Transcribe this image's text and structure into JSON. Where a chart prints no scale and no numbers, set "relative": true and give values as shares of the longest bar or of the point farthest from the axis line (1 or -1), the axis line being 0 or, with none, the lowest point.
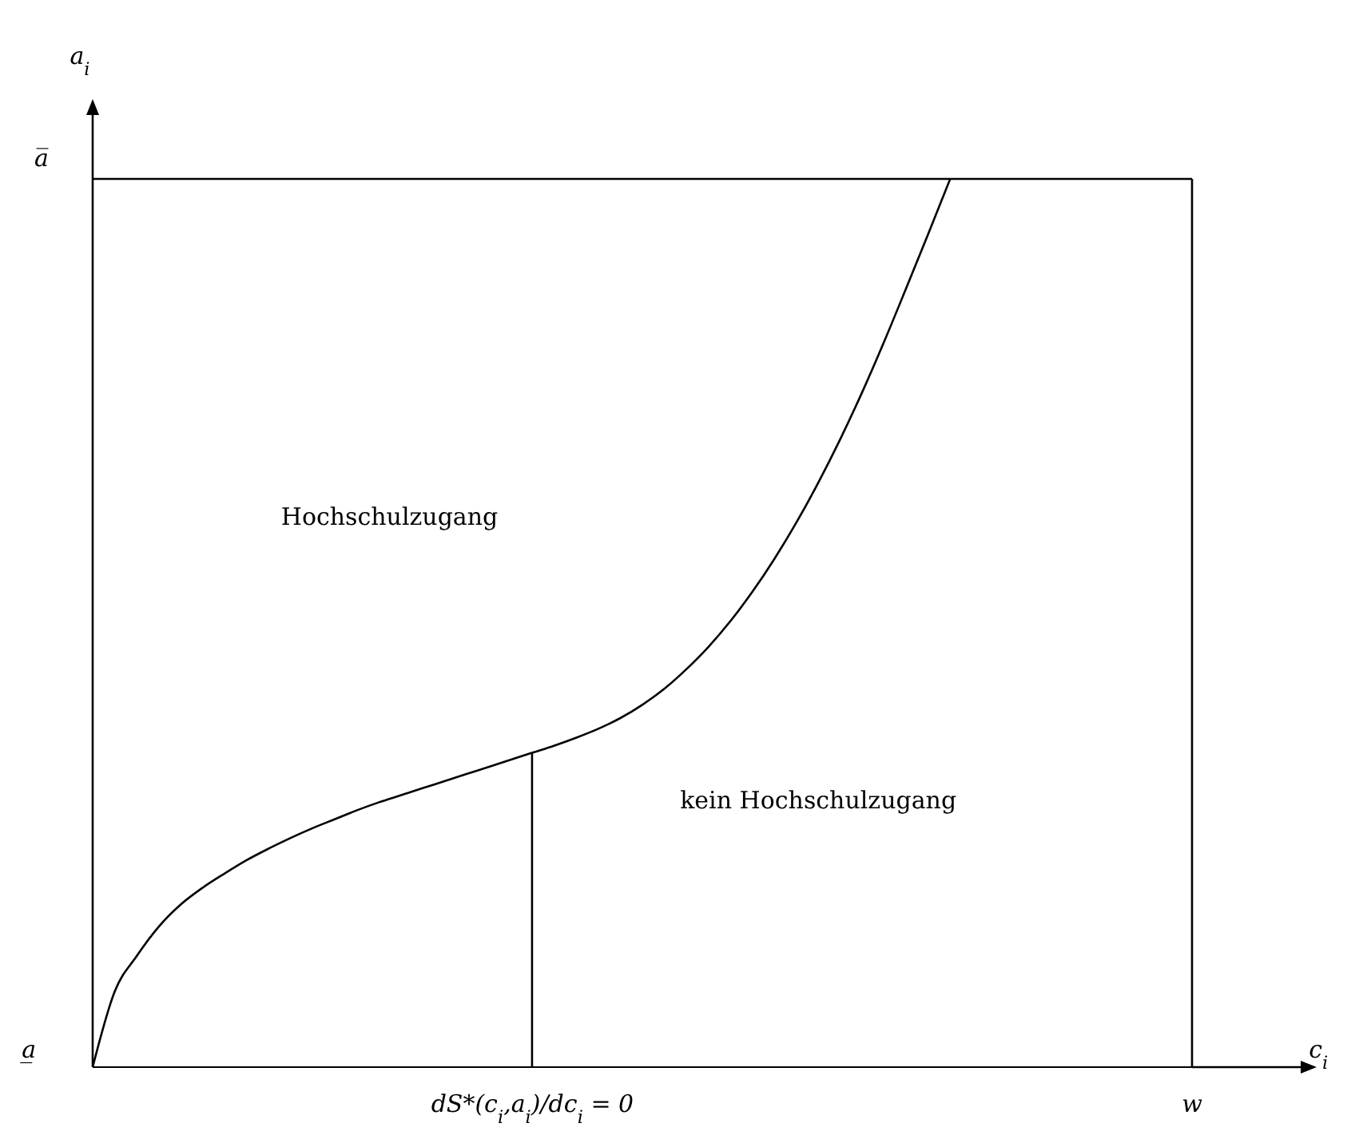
{
  "chart_data": {
    "type": "line",
    "relative": true,
    "ylabel": "a$_{i}$",
    "categories": [
      null,
      null,
      null,
      null,
      null,
      null,
      null,
      null,
      null,
      null,
      null,
      null,
      null,
      null,
      null,
      null,
      null,
      null,
      null,
      null,
      "dS*(c$_{i}$,a$_{i}$)/dc$_{i}$ = 0",
      null,
      null,
      null,
      null,
      null,
      null,
      null,
      null,
      null,
      null,
      null,
      null,
      null,
      null,
      null,
      null,
      null,
      null,
      null,
      null,
      null,
      null,
      null,
      null,
      null,
      null,
      null,
      null,
      null,
      "w"
    ],
    "series": [
      {
        "color": "#000000",
        "values": [
          0,
          0.085,
          0.125,
          0.158,
          0.183,
          0.202,
          0.218,
          0.233,
          0.246,
          0.258,
          0.269,
          0.279,
          0.289,
          0.298,
          0.306,
          0.314,
          0.322,
          0.33,
          0.338,
          0.346,
          0.354,
          0.362,
          0.371,
          0.381,
          0.393,
          0.408,
          0.426,
          0.448,
          0.473,
          0.502,
          0.535,
          0.572,
          0.613,
          0.658,
          0.707,
          0.76,
          0.817,
          0.877,
          0.938,
          1,
          null,
          null,
          null,
          null,
          null,
          null,
          null,
          null,
          null,
          null,
          null
        ]
      },
      {
        "type": "bar",
        "color": "#000000",
        "values": [
          null,
          null,
          null,
          null,
          null,
          null,
          null,
          null,
          null,
          null,
          null,
          null,
          null,
          null,
          null,
          null,
          null,
          null,
          null,
          null,
          0.354,
          null,
          null,
          null,
          null,
          null,
          null,
          null,
          null,
          null,
          null,
          null,
          null,
          null,
          null,
          null,
          null,
          null,
          null,
          null,
          null,
          null,
          null,
          null,
          null,
          null,
          null,
          null,
          null,
          null,
          null
        ]
      }
    ],
    "ref_lines": [
      {
        "axis": "y",
        "value": 1,
        "label": "a̅",
        "color": "#000000"
      },
      {
        "axis": "x",
        "value": "w",
        "color": "#000000"
      }
    ],
    "annotations": [
      "Hochschulzugang",
      "kein Hochschulzugang",
      "a̲",
      "c$_{i}$"
    ],
    "grid": false,
    "marker": "none",
    "line_style": "solid"
  }
}
